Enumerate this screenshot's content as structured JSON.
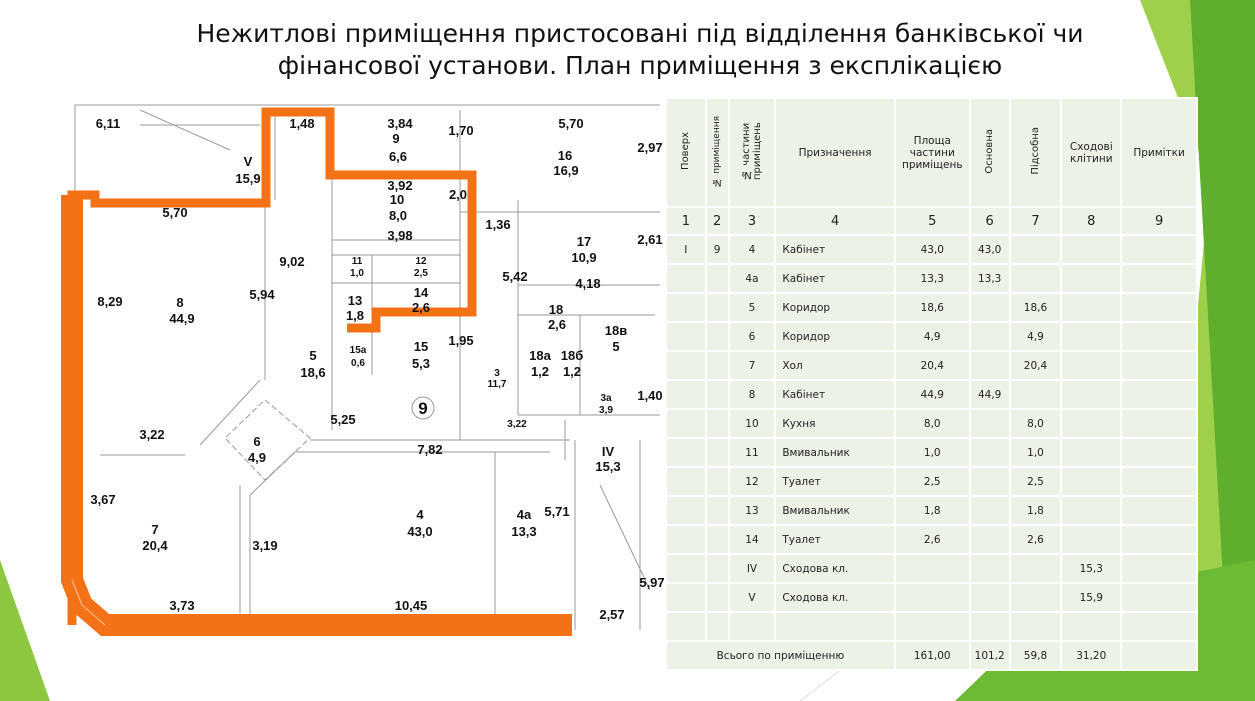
{
  "slide": {
    "title_line1": "Нежитлові приміщення пристосовані під відділення банківської чи",
    "title_line2": "фінансової установи. План приміщення з експлікацією",
    "accent": "#8dc63f",
    "wall_color": "#f47216"
  },
  "plan": {
    "circle_label": "9",
    "labels": [
      "6,11",
      "1,48",
      "3,84",
      "9",
      "6,6",
      "1,70",
      "5,70",
      "2,97",
      "16",
      "16,9",
      "V",
      "15,9",
      "5,70",
      "3,92",
      "10",
      "8,0",
      "2,0",
      "3,98",
      "1,36",
      "17",
      "10,9",
      "2,61",
      "9,02",
      "11",
      "1,0",
      "12",
      "2,5",
      "5,42",
      "4,18",
      "5,94",
      "8",
      "44,9",
      "8,29",
      "13",
      "1,8",
      "14",
      "2,6",
      "18",
      "2,6",
      "18в",
      "5",
      "15а",
      "0,6",
      "15",
      "5,3",
      "1,95",
      "5",
      "18,6",
      "18а",
      "1,2",
      "18б",
      "1,2",
      "3",
      "11,7",
      "3а",
      "3,9",
      "1,40",
      "5,25",
      "3,22",
      "3,22",
      "6",
      "4,9",
      "7,82",
      "IV",
      "15,3",
      "3,67",
      "4",
      "43,0",
      "4а",
      "13,3",
      "5,71",
      "7",
      "20,4",
      "3,19",
      "5,97",
      "3,73",
      "10,45",
      "2,57"
    ]
  },
  "table": {
    "headers": [
      "Поверх",
      "№ приміщення",
      "№ частини приміщень",
      "Призначення",
      "Площа частини приміщень",
      "Основна",
      "Підсобна",
      "Сходові клітини",
      "Примітки"
    ],
    "numbers": [
      "1",
      "2",
      "3",
      "4",
      "5",
      "6",
      "7",
      "8",
      "9"
    ],
    "rows": [
      [
        "I",
        "9",
        "4",
        "Кабінет",
        "43,0",
        "43,0",
        "",
        "",
        ""
      ],
      [
        "",
        "",
        "4а",
        "Кабінет",
        "13,3",
        "13,3",
        "",
        "",
        ""
      ],
      [
        "",
        "",
        "5",
        "Коридор",
        "18,6",
        "",
        "18,6",
        "",
        ""
      ],
      [
        "",
        "",
        "6",
        "Коридор",
        "4,9",
        "",
        "4,9",
        "",
        ""
      ],
      [
        "",
        "",
        "7",
        "Хол",
        "20,4",
        "",
        "20,4",
        "",
        ""
      ],
      [
        "",
        "",
        "8",
        "Кабінет",
        "44,9",
        "44,9",
        "",
        "",
        ""
      ],
      [
        "",
        "",
        "10",
        "Кухня",
        "8,0",
        "",
        "8,0",
        "",
        ""
      ],
      [
        "",
        "",
        "11",
        "Вмивальник",
        "1,0",
        "",
        "1,0",
        "",
        ""
      ],
      [
        "",
        "",
        "12",
        "Туалет",
        "2,5",
        "",
        "2,5",
        "",
        ""
      ],
      [
        "",
        "",
        "13",
        "Вмивальник",
        "1,8",
        "",
        "1,8",
        "",
        ""
      ],
      [
        "",
        "",
        "14",
        "Туалет",
        "2,6",
        "",
        "2,6",
        "",
        ""
      ],
      [
        "",
        "",
        "IV",
        "Сходова кл.",
        "",
        "",
        "",
        "15,3",
        ""
      ],
      [
        "",
        "",
        "V",
        "Сходова кл.",
        "",
        "",
        "",
        "15,9",
        ""
      ],
      [
        "",
        "",
        "",
        "",
        "",
        "",
        "",
        "",
        ""
      ]
    ],
    "total": {
      "label": "Всього по приміщенню",
      "area": "161,00",
      "main": "101,2",
      "aux": "59,8",
      "stairs": "31,20"
    }
  }
}
